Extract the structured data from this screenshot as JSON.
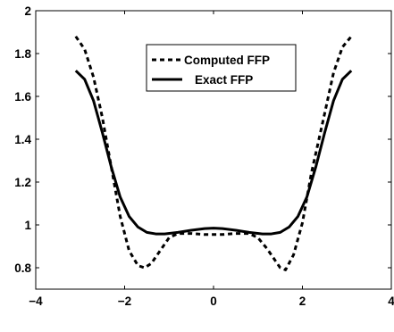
{
  "chart_data": {
    "type": "line",
    "title": "",
    "xlabel": "",
    "ylabel": "",
    "xlim": [
      -4,
      4
    ],
    "ylim": [
      0.7,
      2
    ],
    "grid": false,
    "legend_position": "top-center",
    "x_ticks": [
      -4,
      -2,
      0,
      2,
      4
    ],
    "x_tick_labels": [
      "−4",
      "−2",
      "0",
      "2",
      "4"
    ],
    "y_ticks": [
      0.8,
      1,
      1.2,
      1.4,
      1.6,
      1.8,
      2
    ],
    "y_tick_labels": [
      "0.8",
      "1",
      "1.2",
      "1.4",
      "1.6",
      "1.8",
      "2"
    ],
    "series": [
      {
        "name": "Computed FFP",
        "style": "dashed",
        "color": "#000000",
        "x": [
          -3.1,
          -2.9,
          -2.7,
          -2.5,
          -2.3,
          -2.1,
          -1.9,
          -1.7,
          -1.55,
          -1.4,
          -1.2,
          -1.0,
          -0.8,
          -0.5,
          -0.2,
          0,
          0.2,
          0.5,
          0.8,
          1.0,
          1.2,
          1.4,
          1.5,
          1.62,
          1.8,
          2.0,
          2.2,
          2.5,
          2.7,
          2.9,
          3.1
        ],
        "y": [
          1.88,
          1.82,
          1.69,
          1.5,
          1.27,
          1.04,
          0.88,
          0.81,
          0.8,
          0.82,
          0.88,
          0.94,
          0.96,
          0.96,
          0.955,
          0.955,
          0.955,
          0.96,
          0.96,
          0.94,
          0.89,
          0.83,
          0.8,
          0.79,
          0.86,
          1.01,
          1.24,
          1.52,
          1.71,
          1.83,
          1.88
        ]
      },
      {
        "name": "Exact FFP",
        "style": "solid",
        "color": "#000000",
        "x": [
          -3.1,
          -2.9,
          -2.7,
          -2.5,
          -2.3,
          -2.1,
          -1.9,
          -1.7,
          -1.5,
          -1.3,
          -1.1,
          -0.8,
          -0.5,
          -0.2,
          0,
          0.2,
          0.5,
          0.8,
          1.1,
          1.3,
          1.5,
          1.7,
          1.9,
          2.1,
          2.3,
          2.5,
          2.7,
          2.9,
          3.1
        ],
        "y": [
          1.72,
          1.68,
          1.58,
          1.43,
          1.27,
          1.13,
          1.04,
          0.99,
          0.965,
          0.958,
          0.958,
          0.965,
          0.975,
          0.983,
          0.985,
          0.983,
          0.975,
          0.965,
          0.958,
          0.958,
          0.965,
          0.99,
          1.04,
          1.13,
          1.27,
          1.43,
          1.58,
          1.68,
          1.72
        ]
      }
    ]
  }
}
